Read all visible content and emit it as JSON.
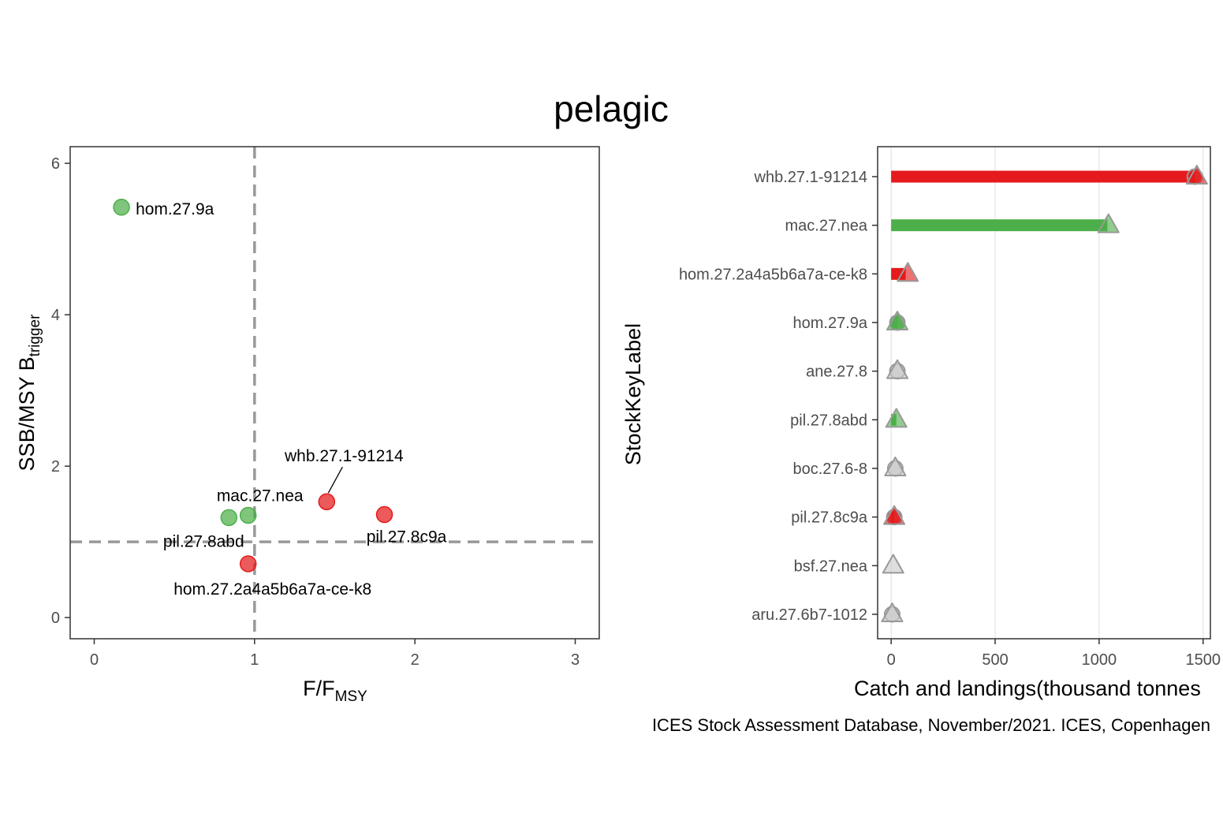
{
  "title": "pelagic",
  "caption": "ICES Stock Assessment Database, November/2021. ICES, Copenhagen",
  "colors": {
    "red": "#e41a1c",
    "green": "#4daf4a",
    "grey": "#cccccc",
    "ref_line": "#999999"
  },
  "chart_data": [
    {
      "type": "scatter",
      "title": "",
      "xlabel": {
        "main": "F/F",
        "sub": "MSY"
      },
      "ylabel": {
        "main": "SSB/MSY B",
        "sub": "trigger"
      },
      "xlim": [
        -0.15,
        3.15
      ],
      "ylim": [
        -0.28,
        6.22
      ],
      "xticks": [
        "0",
        "1",
        "2",
        "3"
      ],
      "yticks": [
        "0",
        "2",
        "4",
        "6"
      ],
      "grid": false,
      "ref_lines": {
        "x": 1,
        "y": 1
      },
      "points": [
        {
          "label": "hom.27.9a",
          "x": 0.17,
          "y": 5.42,
          "color": "green"
        },
        {
          "label": "whb.27.1-91214",
          "x": 1.45,
          "y": 1.53,
          "color": "red"
        },
        {
          "label": "mac.27.nea",
          "x": 0.96,
          "y": 1.35,
          "color": "green"
        },
        {
          "label": "pil.27.8abd",
          "x": 0.84,
          "y": 1.32,
          "color": "green"
        },
        {
          "label": "pil.27.8c9a",
          "x": 1.81,
          "y": 1.36,
          "color": "red"
        },
        {
          "label": "hom.27.2a4a5b6a7a-ce-k8",
          "x": 0.96,
          "y": 0.71,
          "color": "red"
        }
      ]
    },
    {
      "type": "bar",
      "orientation": "horizontal",
      "title": "",
      "xlabel": "Catch and landings(thousand tonnes",
      "ylabel": "StockKeyLabel",
      "xlim": [
        -65,
        1535
      ],
      "xticks": [
        0,
        500,
        1000,
        1500
      ],
      "grid": "vertical",
      "legend": "none",
      "series": [
        {
          "name": "",
          "marker": "bar"
        },
        {
          "name": "",
          "marker": "circle"
        },
        {
          "name": "",
          "marker": "triangle"
        }
      ],
      "categories": [
        "whb.27.1-91214",
        "mac.27.nea",
        "hom.27.2a4a5b6a7a-ce-k8",
        "hom.27.9a",
        "ane.27.8",
        "pil.27.8abd",
        "boc.27.6-8",
        "pil.27.8c9a",
        "bsf.27.nea",
        "aru.27.6b7-1012"
      ],
      "bars": [
        1460,
        1040,
        70,
        30,
        null,
        25,
        null,
        15,
        null,
        null
      ],
      "circles": [
        1460,
        null,
        null,
        30,
        30,
        null,
        20,
        15,
        null,
        5
      ],
      "triangles": [
        1470,
        1045,
        80,
        30,
        30,
        25,
        20,
        15,
        10,
        5
      ],
      "colors": [
        "red",
        "green",
        "red",
        "green",
        "grey",
        "green",
        "grey",
        "red",
        "grey",
        "grey"
      ]
    }
  ]
}
